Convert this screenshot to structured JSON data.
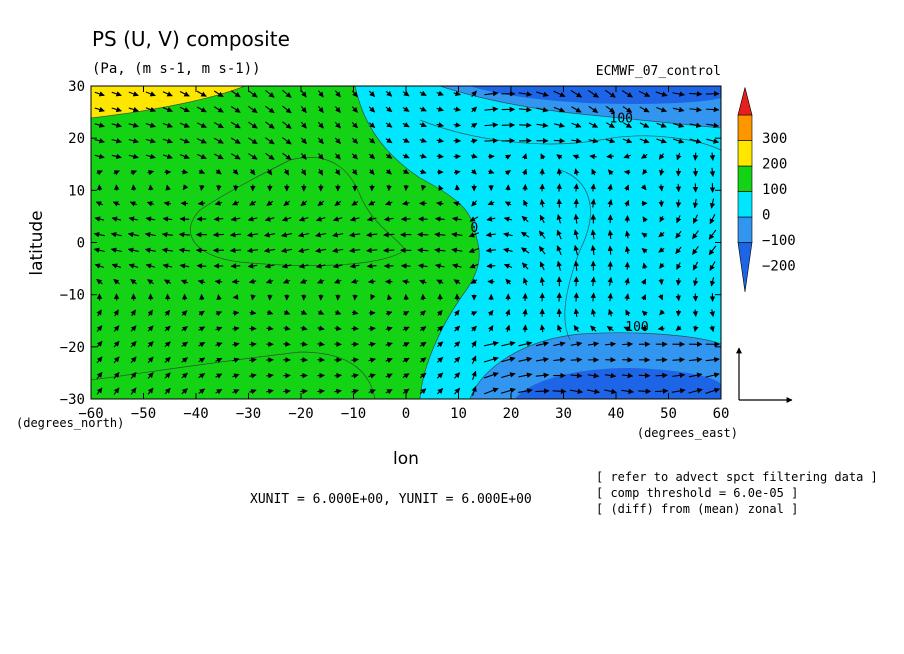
{
  "chart_data": {
    "type": "heatmap",
    "title": "PS (U, V) composite",
    "subtitle": "(Pa, (m s-1, m s-1))",
    "dataset": "ECMWF_07_control",
    "xlabel": "lon",
    "ylabel": "latitude",
    "x_unit_label": "(degrees_east)",
    "y_unit_label": "(degrees_north)",
    "xlim": [
      -60,
      60
    ],
    "ylim": [
      -30,
      30
    ],
    "x_ticks": [
      -60,
      -50,
      -40,
      -30,
      -20,
      -10,
      0,
      10,
      20,
      30,
      40,
      50,
      60
    ],
    "y_ticks": [
      -30,
      -20,
      -10,
      0,
      10,
      20,
      30
    ],
    "colorbar": {
      "levels": [
        -200,
        -100,
        0,
        100,
        200,
        300
      ],
      "labels": [
        "300",
        "200",
        "100",
        "0",
        "−100",
        "−200"
      ],
      "colors": [
        "#1e64e6",
        "#3296f0",
        "#00e6ff",
        "#14d214",
        "#ffe600",
        "#ff9600",
        "#e61e1e"
      ]
    },
    "contour_labels": [
      {
        "text": "100",
        "lon": 41,
        "lat": 23
      },
      {
        "text": "0",
        "lon": 13,
        "lat": 2
      },
      {
        "text": "100",
        "lon": 44,
        "lat": -17
      }
    ],
    "vector_ref": {
      "xunit": "XUNIT = 6.000E+00",
      "yunit": "YUNIT = 6.000E+00",
      "text": "XUNIT = 6.000E+00, YUNIT = 6.000E+00"
    },
    "notes": [
      "[ refer to advect spct filtering data ]",
      "[ comp threshold = 6.0e-05 ]",
      "[ (diff) from (mean) zonal ]"
    ]
  }
}
